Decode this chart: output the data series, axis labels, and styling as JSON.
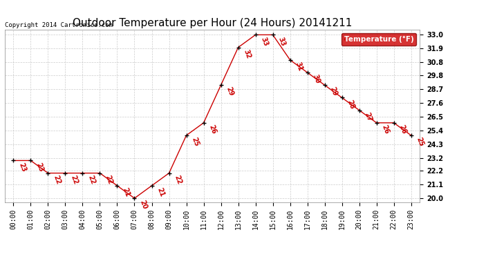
{
  "title": "Outdoor Temperature per Hour (24 Hours) 20141211",
  "copyright": "Copyright 2014 Cartronics.com",
  "legend_label": "Temperature (°F)",
  "hours": [
    "00:00",
    "01:00",
    "02:00",
    "03:00",
    "04:00",
    "05:00",
    "06:00",
    "07:00",
    "08:00",
    "09:00",
    "10:00",
    "11:00",
    "12:00",
    "13:00",
    "14:00",
    "15:00",
    "16:00",
    "17:00",
    "18:00",
    "19:00",
    "20:00",
    "21:00",
    "22:00",
    "23:00"
  ],
  "values": [
    23,
    23,
    22,
    22,
    22,
    22,
    21,
    20,
    21,
    22,
    25,
    26,
    29,
    32,
    33,
    33,
    31,
    30,
    29,
    28,
    27,
    26,
    26,
    25
  ],
  "ylim": [
    19.7,
    33.4
  ],
  "yticks": [
    20.0,
    21.1,
    22.2,
    23.2,
    24.3,
    25.4,
    26.5,
    27.6,
    28.7,
    29.8,
    30.8,
    31.9,
    33.0
  ],
  "line_color": "#cc0000",
  "marker_color": "#000000",
  "label_color": "#cc0000",
  "grid_color": "#c0c0c0",
  "bg_color": "#ffffff",
  "legend_bg": "#cc0000",
  "legend_text_color": "#ffffff",
  "title_fontsize": 11,
  "label_fontsize": 7,
  "tick_fontsize": 7,
  "copyright_fontsize": 6.5
}
